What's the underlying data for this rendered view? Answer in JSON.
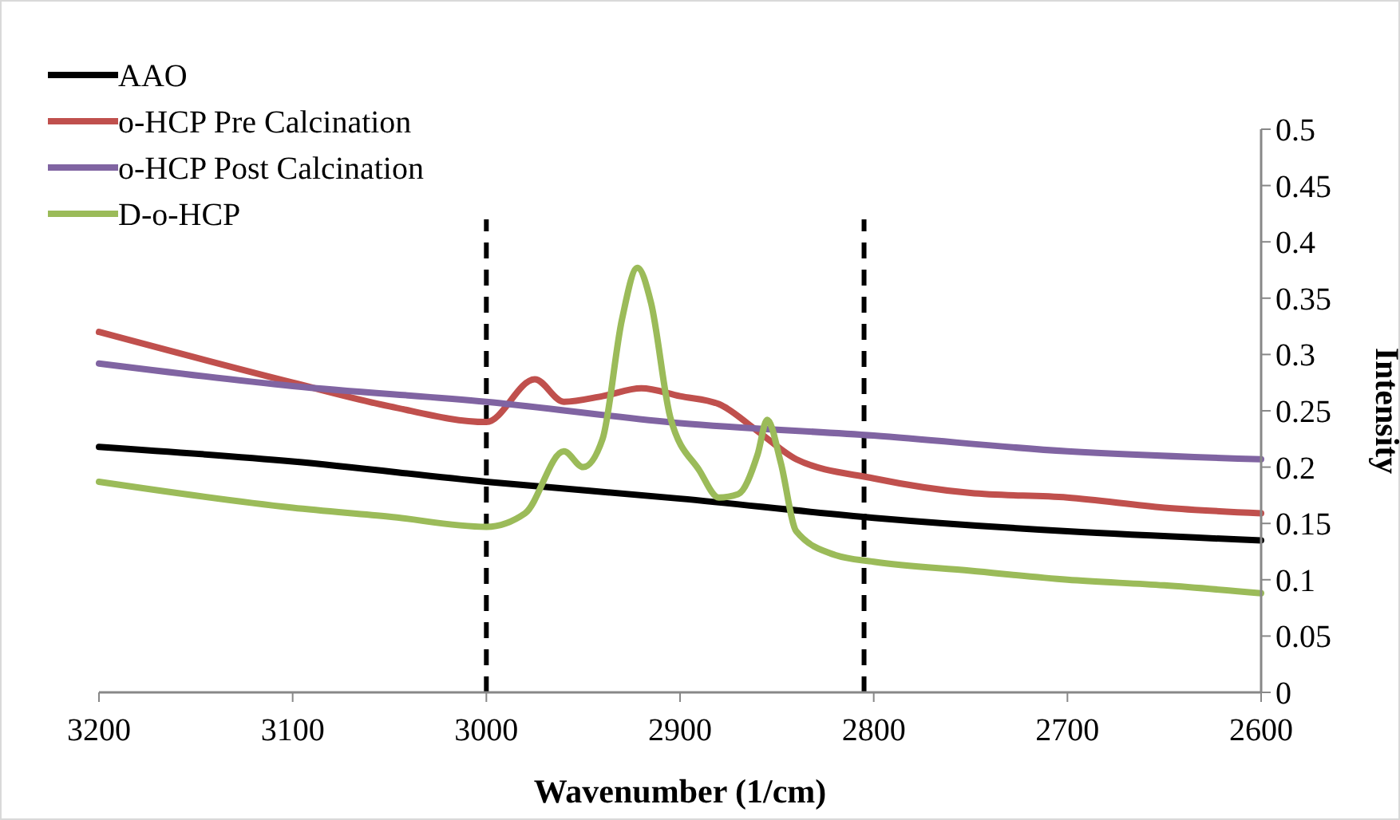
{
  "chart_data": {
    "type": "line",
    "xlabel": "Wavenumber (1/cm)",
    "ylabel": "Intensity",
    "xlim": [
      3200,
      2600
    ],
    "xticks": [
      3200,
      3100,
      3000,
      2900,
      2800,
      2700,
      2600
    ],
    "ylim": [
      0,
      0.5
    ],
    "yticks": [
      0,
      0.05,
      0.1,
      0.15,
      0.2,
      0.25,
      0.3,
      0.35,
      0.4,
      0.45,
      0.5
    ],
    "grid": false,
    "legend": "top left",
    "marker": "none",
    "line_style": "solid",
    "ref_lines": [
      {
        "axis": "x",
        "value": 3000,
        "color": "#000000",
        "line_style": "dashed"
      },
      {
        "axis": "x",
        "value": 2805,
        "color": "#000000",
        "line_style": "dashed"
      }
    ],
    "series": [
      {
        "name": "AAO",
        "color": "#000000",
        "x": [
          3200,
          3100,
          3000,
          2900,
          2800,
          2700,
          2600
        ],
        "values": [
          0.218,
          0.205,
          0.187,
          0.172,
          0.155,
          0.143,
          0.135
        ]
      },
      {
        "name": "o-HCP Pre Calcination",
        "color": "#c0504d",
        "x": [
          3200,
          3100,
          3050,
          3000,
          2975,
          2960,
          2940,
          2920,
          2900,
          2880,
          2860,
          2840,
          2800,
          2750,
          2700,
          2650,
          2600
        ],
        "values": [
          0.32,
          0.275,
          0.254,
          0.24,
          0.278,
          0.258,
          0.263,
          0.27,
          0.263,
          0.256,
          0.232,
          0.207,
          0.19,
          0.177,
          0.173,
          0.164,
          0.159
        ]
      },
      {
        "name": "o-HCP Post Calcination",
        "color": "#8064a2",
        "x": [
          3200,
          3100,
          3000,
          2900,
          2800,
          2700,
          2600
        ],
        "values": [
          0.292,
          0.272,
          0.258,
          0.239,
          0.228,
          0.214,
          0.207
        ]
      },
      {
        "name": "D-o-HCP",
        "color": "#9bbb59",
        "x": [
          3200,
          3100,
          3050,
          3000,
          2980,
          2960,
          2950,
          2940,
          2930,
          2922,
          2915,
          2905,
          2890,
          2880,
          2870,
          2860,
          2855,
          2848,
          2840,
          2820,
          2800,
          2750,
          2700,
          2650,
          2600
        ],
        "values": [
          0.187,
          0.164,
          0.156,
          0.147,
          0.159,
          0.214,
          0.2,
          0.225,
          0.331,
          0.377,
          0.346,
          0.244,
          0.197,
          0.173,
          0.176,
          0.211,
          0.242,
          0.204,
          0.143,
          0.122,
          0.116,
          0.108,
          0.1,
          0.095,
          0.088
        ]
      }
    ]
  }
}
